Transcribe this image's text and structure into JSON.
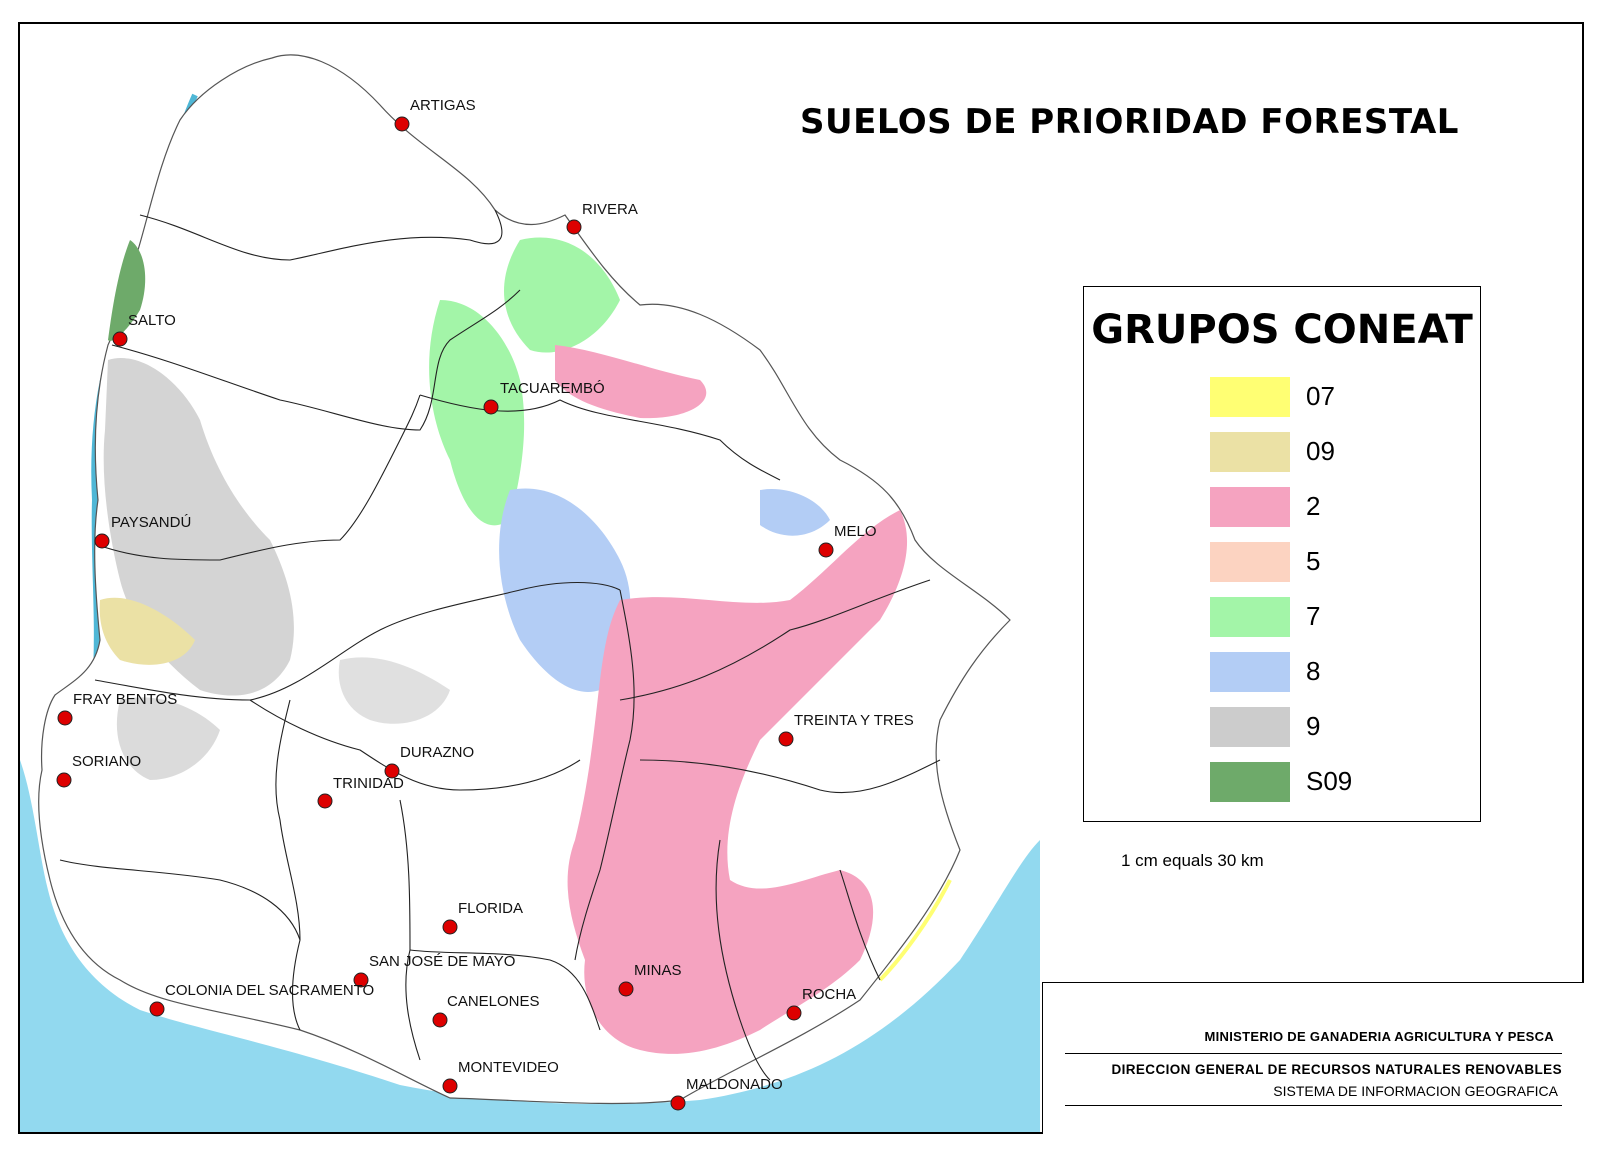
{
  "map": {
    "title": "SUELOS DE PRIORIDAD FORESTAL",
    "scale_text": "1 cm equals 30 km"
  },
  "legend": {
    "title": "GRUPOS CONEAT",
    "items": [
      {
        "label": "07",
        "color": "#ffff73"
      },
      {
        "label": "09",
        "color": "#ebe1a5"
      },
      {
        "label": "2",
        "color": "#f5a3c0"
      },
      {
        "label": "5",
        "color": "#fcd3c1"
      },
      {
        "label": "7",
        "color": "#a3f5a8"
      },
      {
        "label": "8",
        "color": "#b3cdf5"
      },
      {
        "label": "9",
        "color": "#cccccc"
      },
      {
        "label": "S09",
        "color": "#6eaa6a"
      }
    ]
  },
  "credits": {
    "line1": "MINISTERIO DE GANADERIA AGRICULTURA Y PESCA",
    "line2": "DIRECCION GENERAL DE RECURSOS NATURALES RENOVABLES",
    "line3": "SISTEMA DE INFORMACION GEOGRAFICA"
  },
  "cities": [
    {
      "name": "ARTIGAS"
    },
    {
      "name": "RIVERA"
    },
    {
      "name": "SALTO"
    },
    {
      "name": "TACUAREMBÓ"
    },
    {
      "name": "PAYSANDÚ"
    },
    {
      "name": "MELO"
    },
    {
      "name": "FRAY BENTOS"
    },
    {
      "name": "SORIANO"
    },
    {
      "name": "DURAZNO"
    },
    {
      "name": "TRINIDAD"
    },
    {
      "name": "TREINTA Y TRES"
    },
    {
      "name": "FLORIDA"
    },
    {
      "name": "SAN JOSÉ DE MAYO"
    },
    {
      "name": "COLONIA DEL SACRAMENTO"
    },
    {
      "name": "CANELONES"
    },
    {
      "name": "MINAS"
    },
    {
      "name": "ROCHA"
    },
    {
      "name": "MONTEVIDEO"
    },
    {
      "name": "MALDONADO"
    }
  ],
  "colors": {
    "water": "#92d9ef",
    "marker": "#dd0000",
    "river": "#4fb7d6"
  }
}
